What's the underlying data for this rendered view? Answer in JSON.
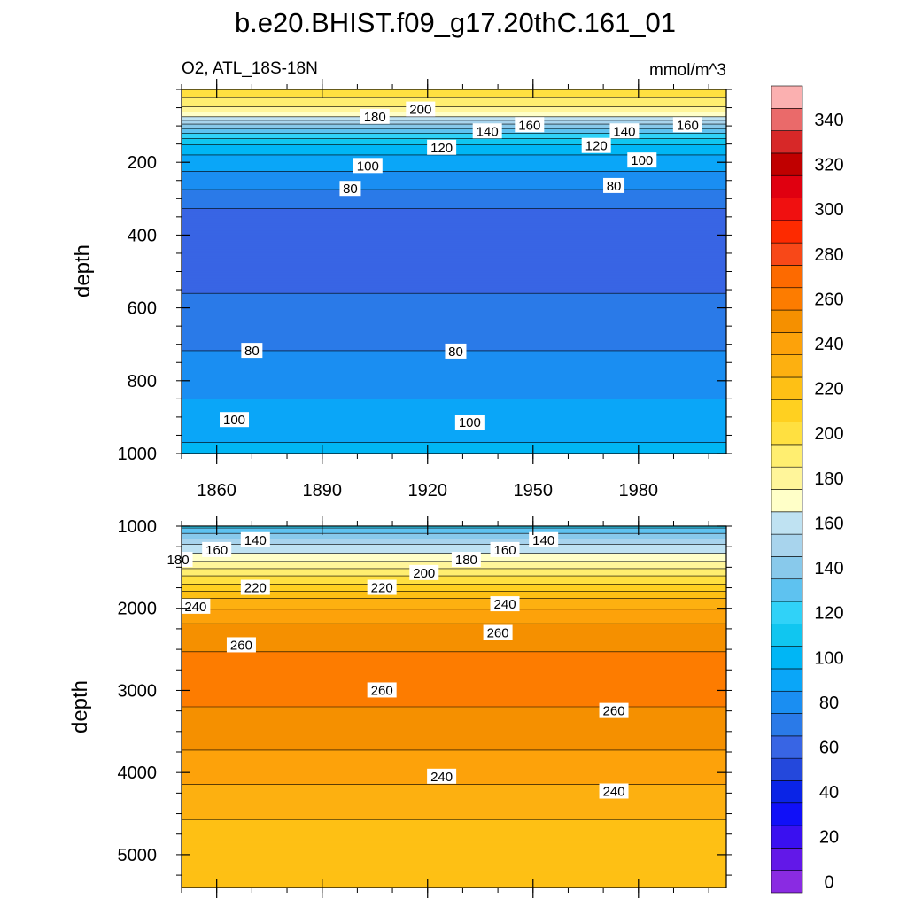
{
  "chart_data": {
    "type": "heatmap",
    "title": "b.e20.BHIST.f09_g17.20thC.161_01",
    "variable_label": "O2, ATL_18S-18N",
    "units": "mmol/m^3",
    "x_axis": {
      "quantity": "year",
      "range": [
        1850,
        2005
      ],
      "tick_labels": [
        "1860",
        "1890",
        "1920",
        "1950",
        "1980"
      ],
      "tick_values": [
        1860,
        1890,
        1920,
        1950,
        1980
      ]
    },
    "colorbar": {
      "levels": [
        0,
        10,
        20,
        30,
        40,
        50,
        60,
        70,
        80,
        90,
        100,
        110,
        120,
        130,
        140,
        150,
        160,
        170,
        180,
        190,
        200,
        210,
        220,
        230,
        240,
        250,
        260,
        270,
        280,
        290,
        300,
        310,
        320,
        330,
        340,
        350
      ],
      "colors": [
        "#8a2be2",
        "#6218e8",
        "#3a10f0",
        "#1010f8",
        "#0a24e6",
        "#2448dc",
        "#3865e4",
        "#2a7ae8",
        "#1a8ef2",
        "#0aa6f8",
        "#00b6f5",
        "#10c6f0",
        "#30d2f8",
        "#5ec2f0",
        "#88c9eb",
        "#a8d4ed",
        "#bfe2f2",
        "#ffffc8",
        "#fff59a",
        "#ffee70",
        "#ffe040",
        "#ffd020",
        "#fec015",
        "#fdb010",
        "#fda20a",
        "#f59000",
        "#fd7c00",
        "#fd6a00",
        "#f84818",
        "#fd2a00",
        "#f01010",
        "#e00010",
        "#c00000",
        "#d72828",
        "#ea6a6a",
        "#fbb0b0"
      ],
      "tick_labels": [
        "0",
        "20",
        "40",
        "60",
        "80",
        "100",
        "120",
        "140",
        "160",
        "180",
        "200",
        "220",
        "240",
        "260",
        "280",
        "300",
        "320",
        "340"
      ],
      "tick_values": [
        0,
        20,
        40,
        60,
        80,
        100,
        120,
        140,
        160,
        180,
        200,
        220,
        240,
        260,
        280,
        300,
        320,
        340
      ]
    },
    "panels": [
      {
        "name": "upper",
        "ylabel": "depth",
        "y_range": [
          0,
          1000
        ],
        "y_tick_labels": [
          "200",
          "400",
          "600",
          "800",
          "1000"
        ],
        "y_tick_values": [
          200,
          400,
          600,
          800,
          1000
        ],
        "depth_profile": [
          [
            5,
            205
          ],
          [
            40,
            195
          ],
          [
            70,
            175
          ],
          [
            95,
            150
          ],
          [
            125,
            125
          ],
          [
            160,
            105
          ],
          [
            200,
            95
          ],
          [
            250,
            85
          ],
          [
            300,
            75
          ],
          [
            340,
            68
          ],
          [
            420,
            65
          ],
          [
            500,
            66
          ],
          [
            560,
            70
          ],
          [
            620,
            75
          ],
          [
            700,
            79
          ],
          [
            770,
            83
          ],
          [
            820,
            87
          ],
          [
            870,
            92
          ],
          [
            940,
            97
          ],
          [
            1000,
            103
          ]
        ],
        "contour_labels": [
          {
            "text": "200",
            "year": 1918,
            "depth": 55
          },
          {
            "text": "180",
            "year": 1905,
            "depth": 75
          },
          {
            "text": "160",
            "year": 1949,
            "depth": 98
          },
          {
            "text": "160",
            "year": 1994,
            "depth": 98
          },
          {
            "text": "140",
            "year": 1937,
            "depth": 115
          },
          {
            "text": "140",
            "year": 1976,
            "depth": 115
          },
          {
            "text": "120",
            "year": 1924,
            "depth": 160
          },
          {
            "text": "120",
            "year": 1968,
            "depth": 155
          },
          {
            "text": "100",
            "year": 1903,
            "depth": 210
          },
          {
            "text": "100",
            "year": 1981,
            "depth": 195
          },
          {
            "text": "80",
            "year": 1898,
            "depth": 273
          },
          {
            "text": "80",
            "year": 1973,
            "depth": 265
          },
          {
            "text": "80",
            "year": 1870,
            "depth": 718
          },
          {
            "text": "80",
            "year": 1928,
            "depth": 720
          },
          {
            "text": "100",
            "year": 1865,
            "depth": 908
          },
          {
            "text": "100",
            "year": 1932,
            "depth": 915
          }
        ]
      },
      {
        "name": "lower",
        "ylabel": "depth",
        "y_range": [
          1000,
          5400
        ],
        "y_tick_labels": [
          "1000",
          "2000",
          "3000",
          "4000",
          "5000"
        ],
        "y_tick_values": [
          1000,
          2000,
          3000,
          4000,
          5000
        ],
        "depth_profile": [
          [
            1010,
            128
          ],
          [
            1100,
            142
          ],
          [
            1200,
            158
          ],
          [
            1350,
            172
          ],
          [
            1500,
            188
          ],
          [
            1600,
            200
          ],
          [
            1750,
            215
          ],
          [
            1900,
            232
          ],
          [
            2050,
            243
          ],
          [
            2300,
            256
          ],
          [
            2700,
            263
          ],
          [
            3200,
            260
          ],
          [
            3600,
            253
          ],
          [
            4000,
            244
          ],
          [
            4400,
            233
          ],
          [
            4800,
            226
          ],
          [
            5200,
            222
          ]
        ],
        "contour_labels": [
          {
            "text": "140",
            "year": 1871,
            "depth": 1170
          },
          {
            "text": "140",
            "year": 1953,
            "depth": 1170
          },
          {
            "text": "160",
            "year": 1860,
            "depth": 1290
          },
          {
            "text": "160",
            "year": 1942,
            "depth": 1290
          },
          {
            "text": "180",
            "year": 1849,
            "depth": 1410
          },
          {
            "text": "180",
            "year": 1931,
            "depth": 1410
          },
          {
            "text": "200",
            "year": 1919,
            "depth": 1570
          },
          {
            "text": "220",
            "year": 1871,
            "depth": 1750
          },
          {
            "text": "220",
            "year": 1907,
            "depth": 1750
          },
          {
            "text": "240",
            "year": 1854,
            "depth": 1980
          },
          {
            "text": "240",
            "year": 1942,
            "depth": 1950
          },
          {
            "text": "260",
            "year": 1867,
            "depth": 2450
          },
          {
            "text": "260",
            "year": 1940,
            "depth": 2300
          },
          {
            "text": "260",
            "year": 1907,
            "depth": 3000
          },
          {
            "text": "260",
            "year": 1973,
            "depth": 3250
          },
          {
            "text": "240",
            "year": 1924,
            "depth": 4050
          },
          {
            "text": "240",
            "year": 1973,
            "depth": 4230
          }
        ]
      }
    ]
  }
}
